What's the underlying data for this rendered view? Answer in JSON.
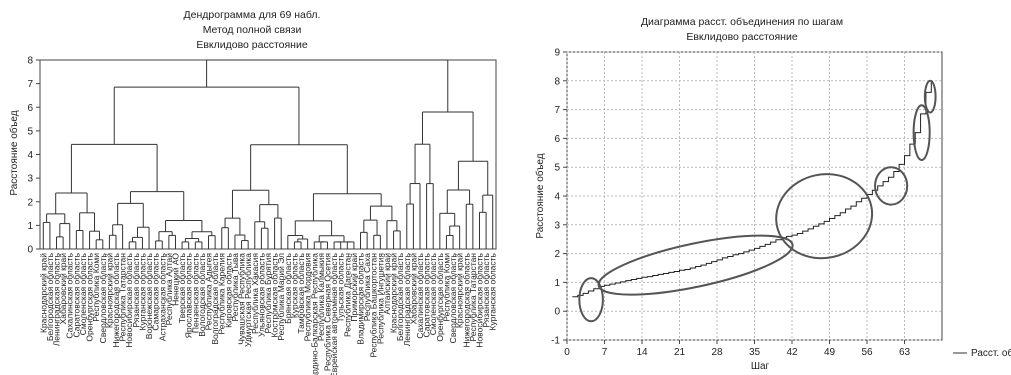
{
  "chart_data": [
    {
      "type": "dendrogram",
      "title": "Дендрограмма для 69 набл.",
      "subtitle1": "Метод полной связи",
      "subtitle2": "Евклидово расстояние",
      "ylabel": "Расстояние объед",
      "ylim": [
        0,
        8
      ],
      "yticks": [
        0,
        1,
        2,
        3,
        4,
        5,
        6,
        7,
        8
      ],
      "leaf_count": 69,
      "leaf_labels": [
        "Краснодарский край",
        "Белгородская область",
        "Ленинградская область",
        "Хабаровский край",
        "Сахалинская область",
        "Саратовская область",
        "Смоленская область",
        "Оренбургская область",
        "Республика Коми",
        "Свердловская область",
        "Красноярский край",
        "Нижегородская область",
        "Республика Татарстан",
        "Новосибирская область",
        "Рязанская область",
        "Курганская область",
        "Воронежская область",
        "Самарская область",
        "Астраханская область",
        "Республика Алтай",
        "Ненецкий АО",
        "Тверская область",
        "Ярославская область",
        "Пензенская область",
        "Вологодская область",
        "Республика Адыгея",
        "Волгоградская область",
        "Республика Карелия",
        "Кировская область",
        "Республика Тыва",
        "Чувашская Республика",
        "Удмуртская Республика",
        "Республика Хакасия",
        "Ульяновская область",
        "Республика Бурятия",
        "Костромская область",
        "Республика Марий Эл",
        "Брянская область",
        "Курская область",
        "Тамбовская область",
        "Республика Мордовия",
        "Кабардино-Балкарская Республика",
        "Республика Калмыкия",
        "Республика Северная Осетия",
        "Еврейская автономная область",
        "Тульская область",
        "Республика Дагестан",
        "Приморский край",
        "Владимирская область",
        "Республика Саха",
        "Республика Башкортостан",
        "Республика Ингушетия",
        "Алтайский край"
      ],
      "clusters_top": [
        {
          "name": "left-major",
          "height": 6.85
        },
        {
          "name": "right-major",
          "height": 5.8
        },
        {
          "name": "root",
          "height": 8.0
        }
      ]
    },
    {
      "type": "line",
      "title": "Диаграмма расст. объединения по шагам",
      "subtitle": "Евклидово расстояние",
      "xlabel": "Шаг",
      "ylabel": "Расстояние объед",
      "xlim": [
        0,
        70
      ],
      "ylim": [
        -1,
        9
      ],
      "xticks": [
        0,
        7,
        14,
        21,
        28,
        35,
        42,
        49,
        56,
        63
      ],
      "yticks": [
        -1,
        0,
        1,
        2,
        3,
        4,
        5,
        6,
        7,
        8,
        9
      ],
      "legend": "Расст. объедин",
      "legend_position": "right-outside",
      "grid": true,
      "series": [
        {
          "name": "Расст. объедин",
          "x": [
            1,
            2,
            3,
            4,
            5,
            6,
            7,
            8,
            9,
            10,
            11,
            12,
            13,
            14,
            15,
            16,
            17,
            18,
            19,
            20,
            21,
            22,
            23,
            24,
            25,
            26,
            27,
            28,
            29,
            30,
            31,
            32,
            33,
            34,
            35,
            36,
            37,
            38,
            39,
            40,
            41,
            42,
            43,
            44,
            45,
            46,
            47,
            48,
            49,
            50,
            51,
            52,
            53,
            54,
            55,
            56,
            57,
            58,
            59,
            60,
            61,
            62,
            63,
            64,
            65,
            66,
            67,
            68
          ],
          "y": [
            0.5,
            0.55,
            0.62,
            0.7,
            0.78,
            0.86,
            0.9,
            0.94,
            0.98,
            1.02,
            1.06,
            1.1,
            1.14,
            1.18,
            1.2,
            1.24,
            1.28,
            1.31,
            1.35,
            1.38,
            1.42,
            1.45,
            1.5,
            1.55,
            1.6,
            1.66,
            1.72,
            1.78,
            1.85,
            1.9,
            1.96,
            2.0,
            2.06,
            2.12,
            2.18,
            2.25,
            2.32,
            2.4,
            2.48,
            2.55,
            2.6,
            2.64,
            2.7,
            2.78,
            2.86,
            2.95,
            3.03,
            3.12,
            3.22,
            3.32,
            3.42,
            3.55,
            3.65,
            3.8,
            3.92,
            4.05,
            4.2,
            4.35,
            4.5,
            4.65,
            4.85,
            5.1,
            5.4,
            5.8,
            6.2,
            6.85,
            7.6,
            8.0
          ]
        }
      ],
      "ellipses": [
        {
          "cx": 4.5,
          "cy": 0.4,
          "rx": 2.2,
          "ry": 0.75
        },
        {
          "cx": 24,
          "cy": 1.6,
          "rx": 18.5,
          "ry": 0.75
        },
        {
          "cx": 48,
          "cy": 3.3,
          "rx": 9,
          "ry": 1.45
        },
        {
          "cx": 60.5,
          "cy": 4.35,
          "rx": 3,
          "ry": 0.65
        },
        {
          "cx": 66.2,
          "cy": 6.2,
          "rx": 1.5,
          "ry": 0.95
        },
        {
          "cx": 67.8,
          "cy": 7.45,
          "rx": 1,
          "ry": 0.55
        }
      ]
    }
  ]
}
